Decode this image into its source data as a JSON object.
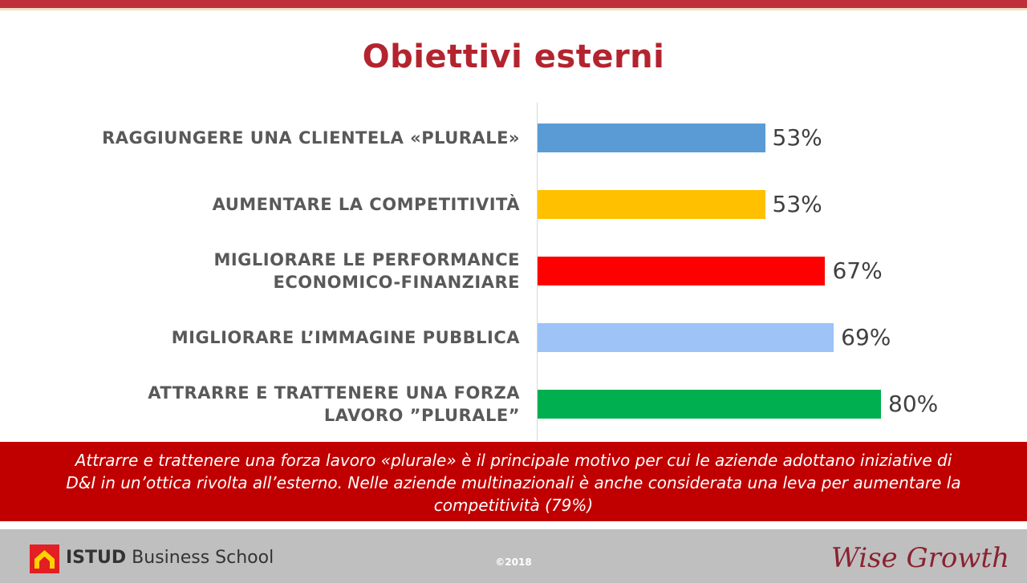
{
  "title": "Obiettivi esterni",
  "chart_data": {
    "type": "bar",
    "orientation": "horizontal",
    "categories": [
      "RAGGIUNGERE UNA CLIENTELA «PLURALE»",
      "AUMENTARE LA COMPETITIVITÀ",
      "MIGLIORARE LE PERFORMANCE ECONOMICO-FINANZIARE",
      "MIGLIORARE L’IMMAGINE PUBBLICA",
      "ATTRARRE E TRATTENERE UNA FORZA LAVORO ”PLURALE”"
    ],
    "label_lines": [
      [
        "RAGGIUNGERE UNA CLIENTELA «PLURALE»"
      ],
      [
        "AUMENTARE LA COMPETITIVITÀ"
      ],
      [
        "MIGLIORARE LE PERFORMANCE",
        "ECONOMICO-FINANZIARE"
      ],
      [
        "MIGLIORARE L’IMMAGINE PUBBLICA"
      ],
      [
        "ATTRARRE E TRATTENERE UNA FORZA",
        "LAVORO ”PLURALE”"
      ]
    ],
    "values": [
      53,
      53,
      67,
      69,
      80
    ],
    "value_labels": [
      "53%",
      "53%",
      "67%",
      "69%",
      "80%"
    ],
    "colors": [
      "#5b9bd5",
      "#ffc000",
      "#ff0000",
      "#9dc3f7",
      "#00b050"
    ],
    "xlim": [
      0,
      100
    ],
    "grid": false,
    "legend": "none"
  },
  "callout": {
    "text": "Attrarre e trattenere una forza lavoro «plurale» è il principale motivo per cui le aziende adottano iniziative di D&I in un’ottica rivolta all’esterno. Nelle aziende multinazionali è anche considerata una leva per aumentare la competitività (79%)",
    "background": "#c00000"
  },
  "footer": {
    "logo_brand": "ISTUD",
    "logo_suffix": " Business School",
    "copyright": "©2018",
    "tagline": "Wise Growth"
  },
  "colors": {
    "accent": "#b3242f",
    "top_bar": "#c0303a",
    "footer_bg": "#bfbfbf"
  }
}
